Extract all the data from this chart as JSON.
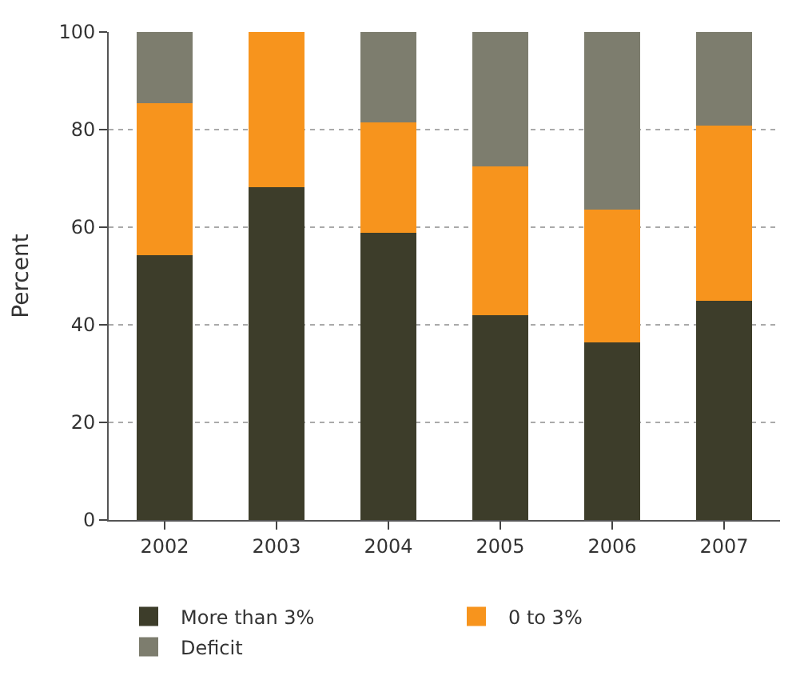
{
  "chart_data": {
    "type": "bar",
    "stacked": true,
    "ylabel": "Percent",
    "categories": [
      "2002",
      "2003",
      "2004",
      "2005",
      "2006",
      "2007"
    ],
    "series": [
      {
        "name": "More than 3%",
        "color": "#3d3d2a",
        "values": [
          54.3,
          68.2,
          58.9,
          42,
          36.4,
          45
        ]
      },
      {
        "name": "0 to 3%",
        "color": "#f7941d",
        "values": [
          31.1,
          31.8,
          22.6,
          30.5,
          27.2,
          35.8
        ]
      },
      {
        "name": "Deficit",
        "color": "#7d7d6e",
        "values": [
          14.6,
          0,
          18.5,
          27.5,
          36.4,
          19.2
        ]
      }
    ],
    "ylim": [
      0,
      100
    ],
    "yticks": [
      0,
      20,
      40,
      60,
      80,
      100
    ],
    "grid": "y",
    "legend": "bottom"
  }
}
